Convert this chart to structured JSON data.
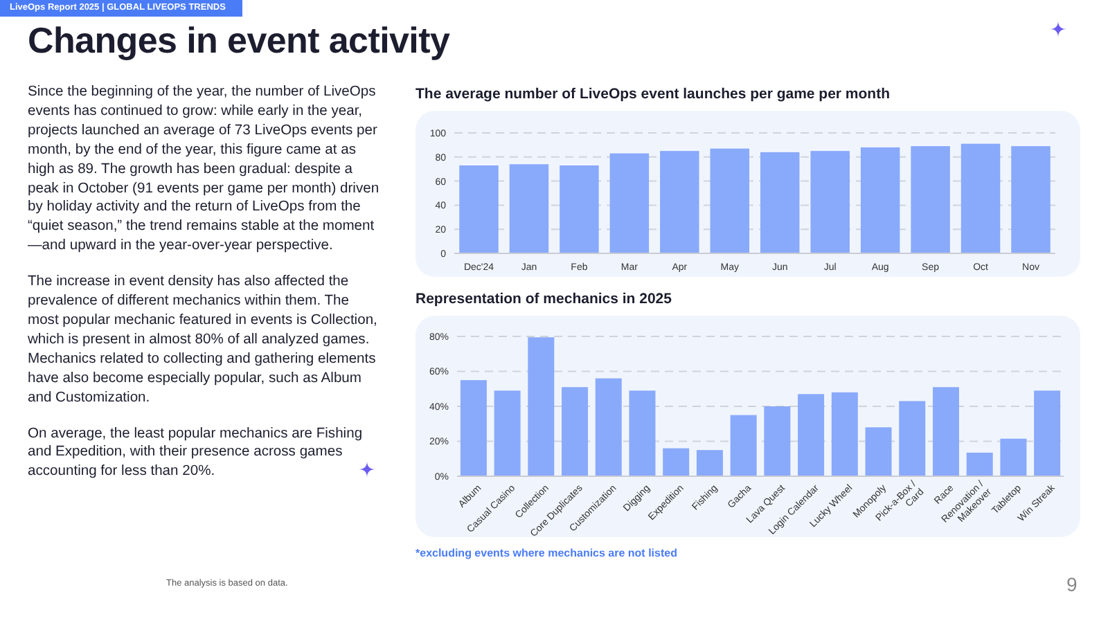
{
  "chart_data": [
    {
      "type": "other",
      "title": "Changes in event activity",
      "subtitle": "LiveOps Report 2025 | GLOBAL LIVEOPS TRENDS",
      "annotations": [
        "Since the beginning of the year, the number of LiveOps events has continued to grow: while early in the year, projects launched an average of 73 LiveOps events per month, by the end of the year, this figure came at as high as 89. The growth has been gradual: despite a peak in October (91 events per game per month) driven by holiday activity and the return of LiveOps from the “quiet season,” the trend remains stable at the moment—and upward in the year-over-year perspective.",
        "The increase in event density has also affected the prevalence of different mechanics within them. The most popular mechanic featured in events is Collection, which is present in almost 80% of all analyzed games. Mechanics related to collecting and gathering elements have also become especially popular, such as Album and Customization.",
        "On average, the least popular mechanics are Fishing and Expedition, with their presence across games accounting for less than 20%.",
        "The analysis is based on data.",
        "9"
      ]
    },
    {
      "type": "bar",
      "title": "The average number of LiveOps event launches per game per month",
      "categories": [
        "Dec'24",
        "Jan",
        "Feb",
        "Mar",
        "Apr",
        "May",
        "Jun",
        "Jul",
        "Aug",
        "Sep",
        "Oct",
        "Nov"
      ],
      "values": [
        73,
        74,
        73,
        83,
        85,
        87,
        84,
        85,
        88,
        89,
        91,
        89
      ],
      "color": "#89a9fb",
      "ylim": [
        0,
        100
      ],
      "yticks": [
        0,
        20,
        40,
        60,
        80,
        100
      ],
      "grid": "y"
    },
    {
      "type": "bar",
      "title": "Representation of mechanics in 2025",
      "categories": [
        "Album",
        "Casual Casino",
        "Collection",
        "Core Duplicates",
        "Customization",
        "Digging",
        "Expedition",
        "Fishing",
        "Gacha",
        "Lava Quest",
        "Login Calendar",
        "Lucky Wheel",
        "Monopoly",
        "Pick-a-Box / Card",
        "Race",
        "Renovation / Makeover",
        "Tabletop",
        "Win Streak"
      ],
      "values": [
        55,
        49,
        79.5,
        51,
        56,
        49,
        16,
        15,
        35,
        40,
        47,
        48,
        28,
        43,
        51,
        13.5,
        21.5,
        49
      ],
      "color": "#89a9fb",
      "ylim": [
        0,
        80
      ],
      "yticks": [
        {
          "value": 0,
          "label": "0%"
        },
        {
          "value": 20,
          "label": "20%"
        },
        {
          "value": 40,
          "label": "40%"
        },
        {
          "value": 60,
          "label": "60%"
        },
        {
          "value": 80,
          "label": "80%"
        }
      ],
      "grid": "y",
      "annotations": [
        "*excluding events where mechanics are not listed"
      ]
    }
  ]
}
